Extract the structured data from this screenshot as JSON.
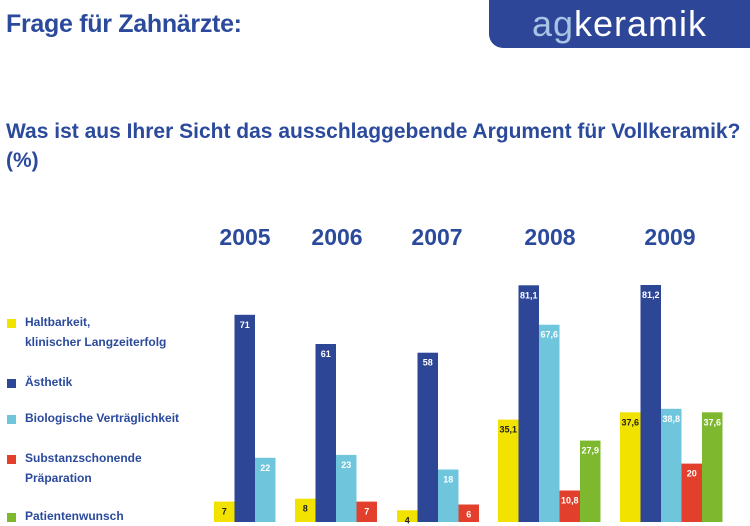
{
  "header": {
    "title": "Frage für Zahnärzte:"
  },
  "logo": {
    "part1": "ag",
    "part2": "keramik"
  },
  "question": "Was ist aus Ihrer Sicht das ausschlaggebende Argument für Vollkeramik? (%)",
  "colors": {
    "brand": "#2b4a9c",
    "logo_bg": "#2d4697"
  },
  "chart_data": {
    "type": "bar",
    "title": "Was ist aus Ihrer Sicht das ausschlaggebende Argument für Vollkeramik? (%)",
    "categories": [
      "2005",
      "2006",
      "2007",
      "2008",
      "2009"
    ],
    "series": [
      {
        "name": "Haltbarkeit,\nklinischer Langzeiterfolg",
        "color": "#f2e200",
        "values": [
          7,
          8,
          4,
          35.1,
          37.6
        ],
        "labels": [
          "7",
          "8",
          "4",
          "35,1",
          "37,6"
        ]
      },
      {
        "name": "Ästhetik",
        "color": "#2d4696",
        "values": [
          71,
          61,
          58,
          81.1,
          81.2
        ],
        "labels": [
          "71",
          "61",
          "58",
          "81,1",
          "81,2"
        ]
      },
      {
        "name": "Biologische Verträglichkeit",
        "color": "#6fc6dc",
        "values": [
          22,
          23,
          18,
          67.6,
          38.8
        ],
        "labels": [
          "22",
          "23",
          "18",
          "67,6",
          "38,8"
        ]
      },
      {
        "name": "Substanzschonende\nPräparation",
        "color": "#e2402c",
        "values": [
          null,
          7,
          6,
          10.8,
          20
        ],
        "labels": [
          "",
          "7",
          "6",
          "10,8",
          "20"
        ]
      },
      {
        "name": "Patientenwunsch",
        "color": "#7db82f",
        "values": [
          null,
          null,
          null,
          27.9,
          37.6
        ],
        "labels": [
          "",
          "",
          "",
          "27,9",
          "37,6"
        ]
      }
    ],
    "xlabel": "",
    "ylabel": "",
    "grid": false,
    "legend_position": "left"
  }
}
